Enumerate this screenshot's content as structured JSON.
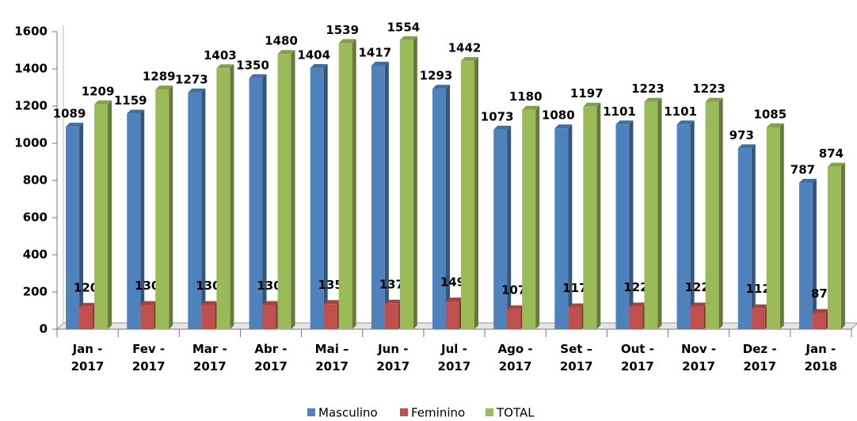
{
  "chart_data": {
    "type": "bar3d",
    "categories": [
      "Jan -\n2017",
      "Fev -\n2017",
      "Mar -\n2017",
      "Abr -\n2017",
      "Mai –\n2017",
      "Jun -\n2017",
      "Jul -\n2017",
      "Ago -\n2017",
      "Set –\n2017",
      "Out -\n2017",
      "Nov -\n2017",
      "Dez -\n2017",
      "Jan -\n2018"
    ],
    "series": [
      {
        "name": "Masculino",
        "color": "#4f81bd",
        "values": [
          1089,
          1159,
          1273,
          1350,
          1404,
          1417,
          1293,
          1073,
          1080,
          1101,
          1101,
          973,
          787
        ]
      },
      {
        "name": "Feminino",
        "color": "#c0504d",
        "values": [
          120,
          130,
          130,
          130,
          135,
          137,
          149,
          107,
          117,
          122,
          122,
          112,
          87
        ]
      },
      {
        "name": "TOTAL",
        "color": "#9bbb59",
        "values": [
          1209,
          1289,
          1403,
          1480,
          1539,
          1554,
          1442,
          1180,
          1197,
          1223,
          1223,
          1085,
          874
        ]
      }
    ],
    "ylim": [
      0,
      1600
    ],
    "yticks": [
      0,
      200,
      400,
      600,
      800,
      1000,
      1200,
      1400,
      1600
    ],
    "grid": false,
    "legend": "bottom"
  }
}
